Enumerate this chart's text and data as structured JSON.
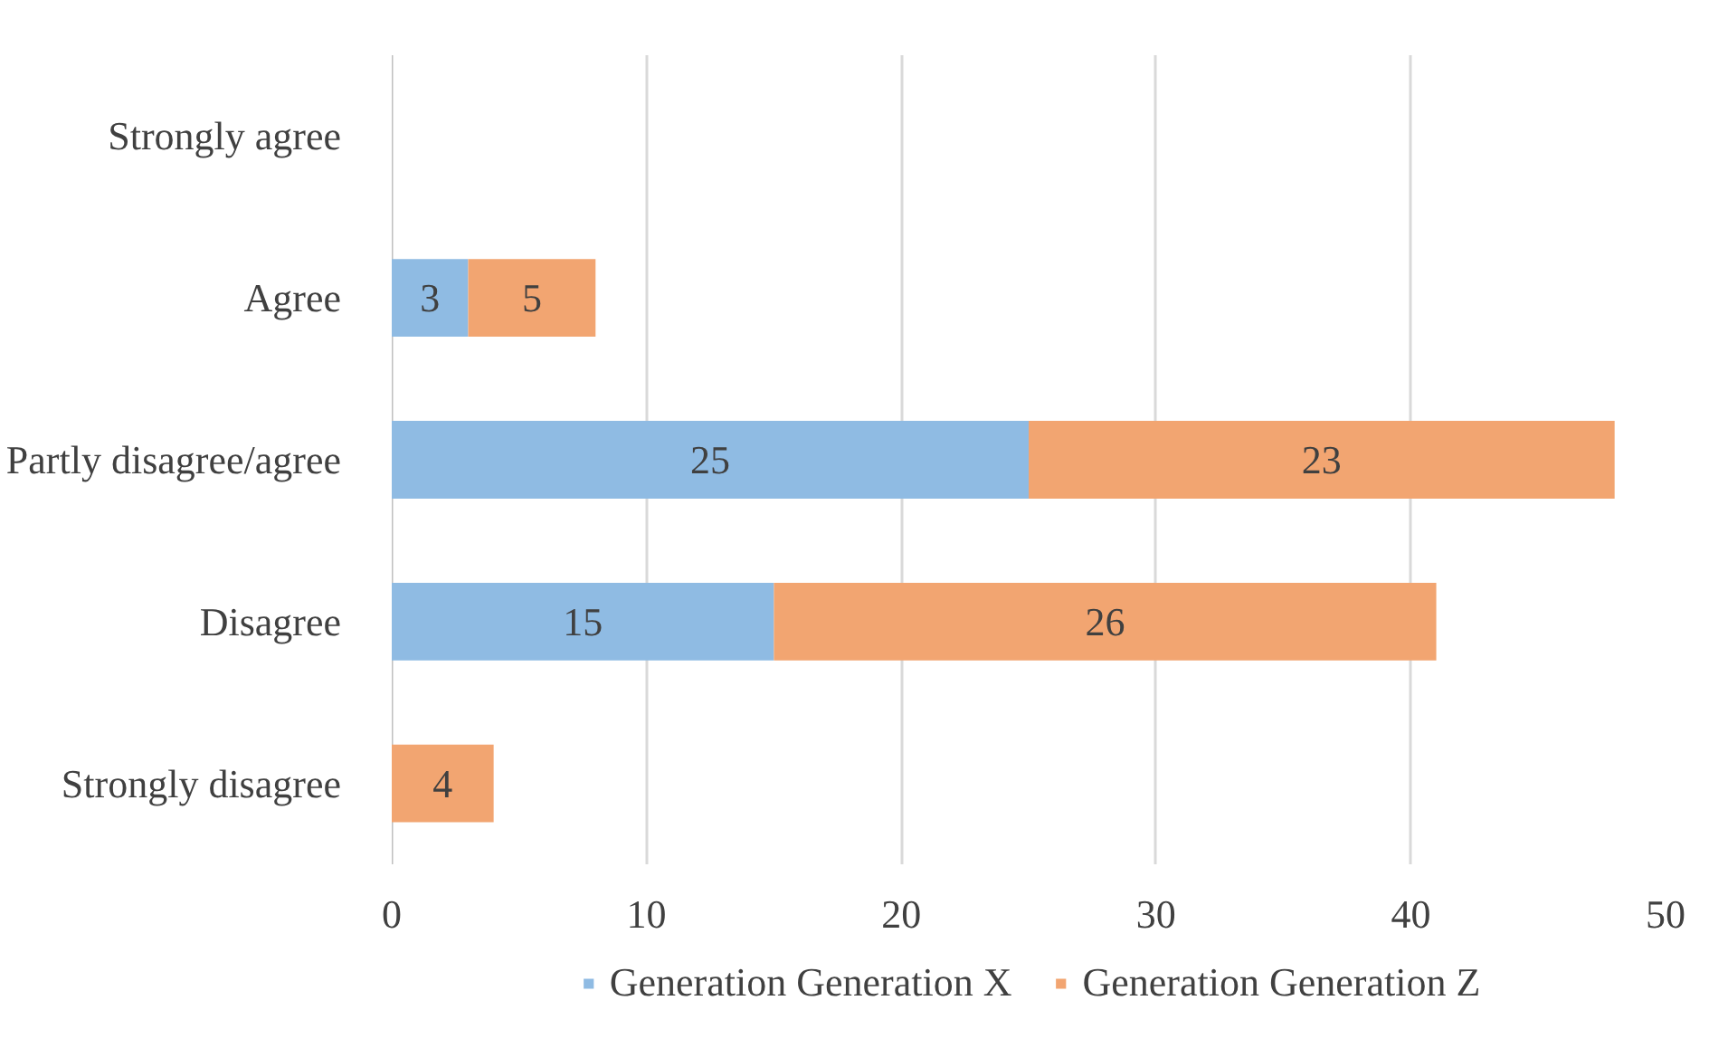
{
  "chart_data": {
    "type": "bar",
    "orientation": "horizontal",
    "stacked": true,
    "categories": [
      "Strongly agree",
      "Agree",
      "Partly disagree/agree",
      "Disagree",
      "Strongly disagree"
    ],
    "series": [
      {
        "name": "Generation Generation X",
        "color": "#8fbbe3",
        "values": [
          null,
          3,
          25,
          15,
          null
        ]
      },
      {
        "name": "Generation Generation Z",
        "color": "#f2a571",
        "values": [
          null,
          5,
          23,
          26,
          4
        ]
      }
    ],
    "xlim": [
      0,
      50
    ],
    "xticks": [
      0,
      10,
      20,
      30,
      40,
      50
    ],
    "grid": "x",
    "legend": "bottom",
    "data_labels": true
  }
}
